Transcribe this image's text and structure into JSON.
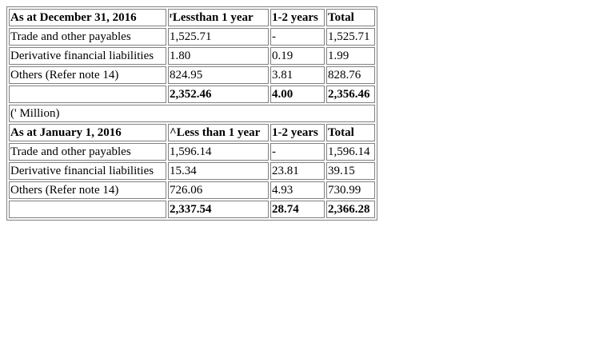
{
  "section1": {
    "header": [
      "As at December 31, 2016",
      "ʳLessthan 1 year",
      "1-2 years",
      "Total"
    ],
    "rows": [
      [
        "Trade and other payables",
        "1,525.71",
        "-",
        "1,525.71"
      ],
      [
        "Derivative financial liabilities",
        "1.80",
        "0.19",
        "1.99"
      ],
      [
        "Others (Refer note 14)",
        "824.95",
        "3.81",
        "828.76"
      ]
    ],
    "total": [
      "",
      "2,352.46",
      "4.00",
      "2,356.46"
    ]
  },
  "unit_note": "(' Million)",
  "section2": {
    "header": [
      "As at January 1, 2016",
      "^Less than 1 year",
      "1-2 years",
      "Total"
    ],
    "rows": [
      [
        "Trade and other payables",
        "1,596.14",
        "-",
        "1,596.14"
      ],
      [
        "Derivative financial liabilities",
        "15.34",
        "23.81",
        "39.15"
      ],
      [
        "Others (Refer note 14)",
        "726.06",
        "4.93",
        "730.99"
      ]
    ],
    "total": [
      "",
      "2,337.54",
      "28.74",
      "2,366.28"
    ]
  }
}
